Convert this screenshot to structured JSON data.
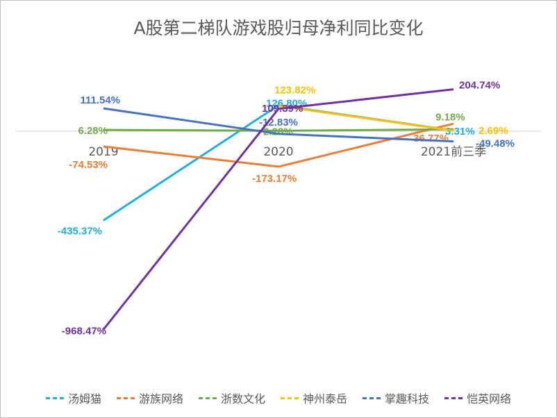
{
  "chart_data": {
    "type": "line",
    "title": "A股第二梯队游戏股归母净利同比变化",
    "categories": [
      "2019",
      "2020",
      "2021前三季"
    ],
    "series": [
      {
        "name": "汤姆猫",
        "color": "#1ab0e0",
        "values": [
          -435.37,
          126.8,
          3.31
        ],
        "labels": [
          "-435.37%",
          "126.80%",
          "3.31%"
        ]
      },
      {
        "name": "游族网络",
        "color": "#ed7d31",
        "values": [
          -74.53,
          -173.17,
          36.77
        ],
        "labels": [
          "-74.53%",
          "-173.17%",
          "36.77%"
        ]
      },
      {
        "name": "浙数文化",
        "color": "#70ad47",
        "values": [
          6.28,
          2.28,
          9.18
        ],
        "labels": [
          "6.28%",
          "2.28%",
          "9.18%"
        ]
      },
      {
        "name": "神州泰岳",
        "color": "#ffc000",
        "values": [
          null,
          123.82,
          2.69
        ],
        "labels": [
          "",
          "123.82%",
          "2.69%"
        ]
      },
      {
        "name": "掌趣科技",
        "color": "#4472c4",
        "values": [
          111.54,
          -12.83,
          -49.48
        ],
        "labels": [
          "111.54%",
          "-12.83%",
          "-49.48%"
        ]
      },
      {
        "name": "恺英网络",
        "color": "#7030a0",
        "values": [
          -968.47,
          109.39,
          204.74
        ],
        "labels": [
          "-968.47%",
          "109.39%",
          "204.74%"
        ]
      }
    ]
  }
}
